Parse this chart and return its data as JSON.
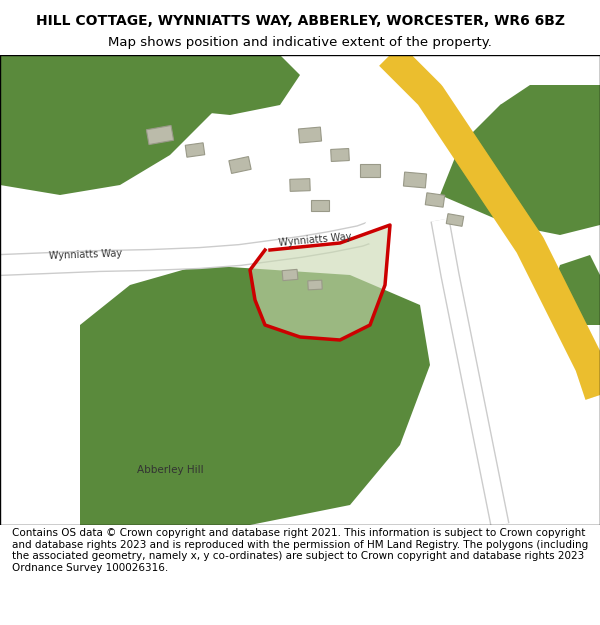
{
  "title_line1": "HILL COTTAGE, WYNNIATTS WAY, ABBERLEY, WORCESTER, WR6 6BZ",
  "title_line2": "Map shows position and indicative extent of the property.",
  "footer_text": "Contains OS data © Crown copyright and database right 2021. This information is subject to Crown copyright and database rights 2023 and is reproduced with the permission of HM Land Registry. The polygons (including the associated geometry, namely x, y co-ordinates) are subject to Crown copyright and database rights 2023 Ordnance Survey 100026316.",
  "bg_color": "#f5f5f0",
  "map_bg": "#e8e8e0",
  "road_color_main": "#f5c842",
  "road_color_minor": "#ffffff",
  "green_dark": "#5a8a3c",
  "green_light": "#8ab86e",
  "plot_outline": "#cc0000",
  "title_fontsize": 10,
  "footer_fontsize": 7.5
}
